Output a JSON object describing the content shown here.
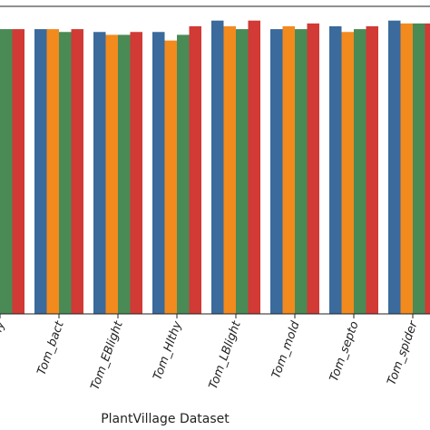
{
  "chart_data": {
    "type": "bar",
    "xlabel": "PlantVillage Dataset",
    "ylabel": "",
    "ylim": [
      0,
      1.08
    ],
    "grid": false,
    "categories": [
      "Tom_Curly",
      "Tom_bact",
      "Tom_EBlight",
      "Tom_Hlthy",
      "Tom_LBlight",
      "Tom_mold",
      "Tom_septo",
      "Tom_spider"
    ],
    "series": [
      {
        "color": "#3b6a9c",
        "values": [
          1.0,
          1.0,
          0.99,
          0.99,
          1.03,
          1.0,
          1.01,
          1.03
        ]
      },
      {
        "color": "#f28a1e",
        "values": [
          1.01,
          1.0,
          0.98,
          0.96,
          1.01,
          1.01,
          0.99,
          1.02
        ]
      },
      {
        "color": "#4a8a55",
        "values": [
          1.0,
          0.99,
          0.98,
          0.98,
          1.0,
          1.0,
          1.0,
          1.02
        ]
      },
      {
        "color": "#d13a35",
        "values": [
          1.0,
          1.0,
          0.99,
          1.01,
          1.03,
          1.02,
          1.01,
          1.02
        ]
      }
    ]
  }
}
